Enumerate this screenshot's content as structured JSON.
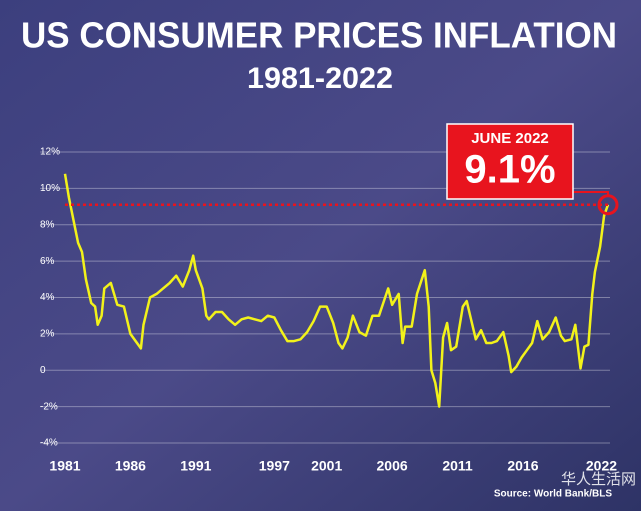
{
  "chart_data": {
    "type": "line",
    "title": "US CONSUMER PRICES INFLATION",
    "subtitle": "1981-2022",
    "source": "Source: World Bank/BLS",
    "watermark": "华人生活网",
    "annotation": {
      "title": "JUNE 2022",
      "text": "9.1%"
    },
    "color": "#f2f21a",
    "highlight_color": "#e8141e",
    "grid": true,
    "xlim": [
      1981,
      2022.5
    ],
    "xticks": [
      1981,
      1986,
      1991,
      1997,
      2001,
      2006,
      2011,
      2016,
      2022
    ],
    "ylim": [
      -4,
      12
    ],
    "yticks": [
      {
        "value": -4,
        "label": "-4%"
      },
      {
        "value": -2,
        "label": "-2%"
      },
      0,
      {
        "value": 2,
        "label": "2%"
      },
      {
        "value": 4,
        "label": "4%"
      },
      {
        "value": 6,
        "label": "6%"
      },
      {
        "value": 8,
        "label": "8%"
      },
      {
        "value": 10,
        "label": "10%"
      },
      {
        "value": 12,
        "label": "12%"
      }
    ],
    "x": [
      1981.0,
      1981.3,
      1982.0,
      1982.3,
      1982.6,
      1983.0,
      1983.3,
      1983.5,
      1983.8,
      1984.0,
      1984.5,
      1985.0,
      1985.5,
      1986.0,
      1986.5,
      1986.8,
      1987.0,
      1987.5,
      1988.0,
      1988.5,
      1989.0,
      1989.5,
      1990.0,
      1990.5,
      1990.8,
      1991.0,
      1991.5,
      1991.8,
      1992.0,
      1992.5,
      1993.0,
      1993.5,
      1994.0,
      1994.5,
      1995.0,
      1995.5,
      1996.0,
      1996.5,
      1997.0,
      1997.5,
      1998.0,
      1998.5,
      1999.0,
      1999.5,
      2000.0,
      2000.5,
      2001.0,
      2001.5,
      2001.9,
      2002.2,
      2002.6,
      2003.0,
      2003.5,
      2004.0,
      2004.5,
      2005.0,
      2005.7,
      2006.0,
      2006.5,
      2006.8,
      2007.0,
      2007.5,
      2007.9,
      2008.5,
      2008.8,
      2009.0,
      2009.3,
      2009.6,
      2009.9,
      2010.2,
      2010.5,
      2010.9,
      2011.4,
      2011.7,
      2012.0,
      2012.4,
      2012.8,
      2013.2,
      2013.6,
      2014.0,
      2014.5,
      2014.9,
      2015.1,
      2015.5,
      2015.9,
      2016.3,
      2016.7,
      2017.1,
      2017.5,
      2018.0,
      2018.5,
      2018.9,
      2019.2,
      2019.7,
      2020.0,
      2020.4,
      2020.7,
      2021.0,
      2021.3,
      2021.5,
      2021.9,
      2022.2,
      2022.5
    ],
    "values": [
      10.8,
      9.5,
      7.0,
      6.5,
      5.0,
      3.7,
      3.5,
      2.5,
      3.0,
      4.5,
      4.8,
      3.6,
      3.5,
      2.0,
      1.5,
      1.2,
      2.5,
      4.0,
      4.2,
      4.5,
      4.8,
      5.2,
      4.6,
      5.5,
      6.3,
      5.5,
      4.5,
      3.0,
      2.8,
      3.2,
      3.2,
      2.8,
      2.5,
      2.8,
      2.9,
      2.8,
      2.7,
      3.0,
      2.9,
      2.2,
      1.6,
      1.6,
      1.7,
      2.1,
      2.7,
      3.5,
      3.5,
      2.6,
      1.5,
      1.2,
      1.8,
      3.0,
      2.1,
      1.9,
      3.0,
      3.0,
      4.5,
      3.6,
      4.2,
      1.5,
      2.4,
      2.4,
      4.2,
      5.5,
      3.5,
      0.0,
      -0.7,
      -2.0,
      1.8,
      2.6,
      1.1,
      1.3,
      3.5,
      3.8,
      2.9,
      1.7,
      2.2,
      1.5,
      1.5,
      1.6,
      2.1,
      0.8,
      -0.1,
      0.2,
      0.7,
      1.1,
      1.5,
      2.7,
      1.7,
      2.1,
      2.9,
      1.9,
      1.6,
      1.7,
      2.5,
      0.1,
      1.3,
      1.4,
      4.2,
      5.4,
      6.8,
      8.5,
      9.1
    ]
  }
}
